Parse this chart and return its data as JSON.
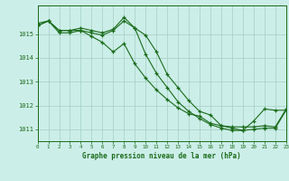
{
  "title": "Graphe pression niveau de la mer (hPa)",
  "background_color": "#cceee8",
  "grid_color": "#aad4c8",
  "line_color": "#1a6b1a",
  "xlim": [
    0,
    23
  ],
  "ylim": [
    1010.5,
    1016.2
  ],
  "yticks": [
    1011,
    1012,
    1013,
    1014,
    1015
  ],
  "xticks": [
    0,
    1,
    2,
    3,
    4,
    5,
    6,
    7,
    8,
    9,
    10,
    11,
    12,
    13,
    14,
    15,
    16,
    17,
    18,
    19,
    20,
    21,
    22,
    23
  ],
  "series1_x": [
    0,
    1,
    2,
    3,
    4,
    5,
    6,
    7,
    8,
    9,
    10,
    11,
    12,
    13,
    14,
    15,
    16,
    17,
    18,
    19,
    20,
    21,
    22,
    23
  ],
  "series1_y": [
    1015.35,
    1015.55,
    1015.15,
    1015.15,
    1015.25,
    1015.15,
    1015.05,
    1015.2,
    1015.7,
    1015.25,
    1014.15,
    1013.35,
    1012.75,
    1012.15,
    1011.75,
    1011.45,
    1011.2,
    1011.05,
    1010.95,
    1010.95,
    1011.35,
    1011.85,
    1011.8,
    1011.8
  ],
  "series2_x": [
    0,
    1,
    2,
    3,
    4,
    5,
    6,
    7,
    8,
    9,
    10,
    11,
    12,
    13,
    14,
    15,
    16,
    17,
    18,
    19,
    20,
    21,
    22,
    23
  ],
  "series2_y": [
    1015.35,
    1015.55,
    1015.05,
    1015.05,
    1015.15,
    1014.9,
    1014.65,
    1014.25,
    1014.6,
    1013.75,
    1013.15,
    1012.65,
    1012.25,
    1011.9,
    1011.65,
    1011.55,
    1011.25,
    1011.15,
    1011.05,
    1010.95,
    1011.0,
    1011.05,
    1011.05,
    1011.8
  ],
  "series3_x": [
    0,
    1,
    2,
    3,
    4,
    5,
    6,
    7,
    8,
    9,
    10,
    11,
    12,
    13,
    14,
    15,
    16,
    17,
    18,
    19,
    20,
    21,
    22,
    23
  ],
  "series3_y": [
    1015.45,
    1015.55,
    1015.15,
    1015.15,
    1015.15,
    1015.05,
    1014.95,
    1015.15,
    1015.55,
    1015.25,
    1014.95,
    1014.25,
    1013.3,
    1012.75,
    1012.2,
    1011.75,
    1011.6,
    1011.15,
    1011.1,
    1011.1,
    1011.1,
    1011.15,
    1011.1,
    1011.85
  ]
}
